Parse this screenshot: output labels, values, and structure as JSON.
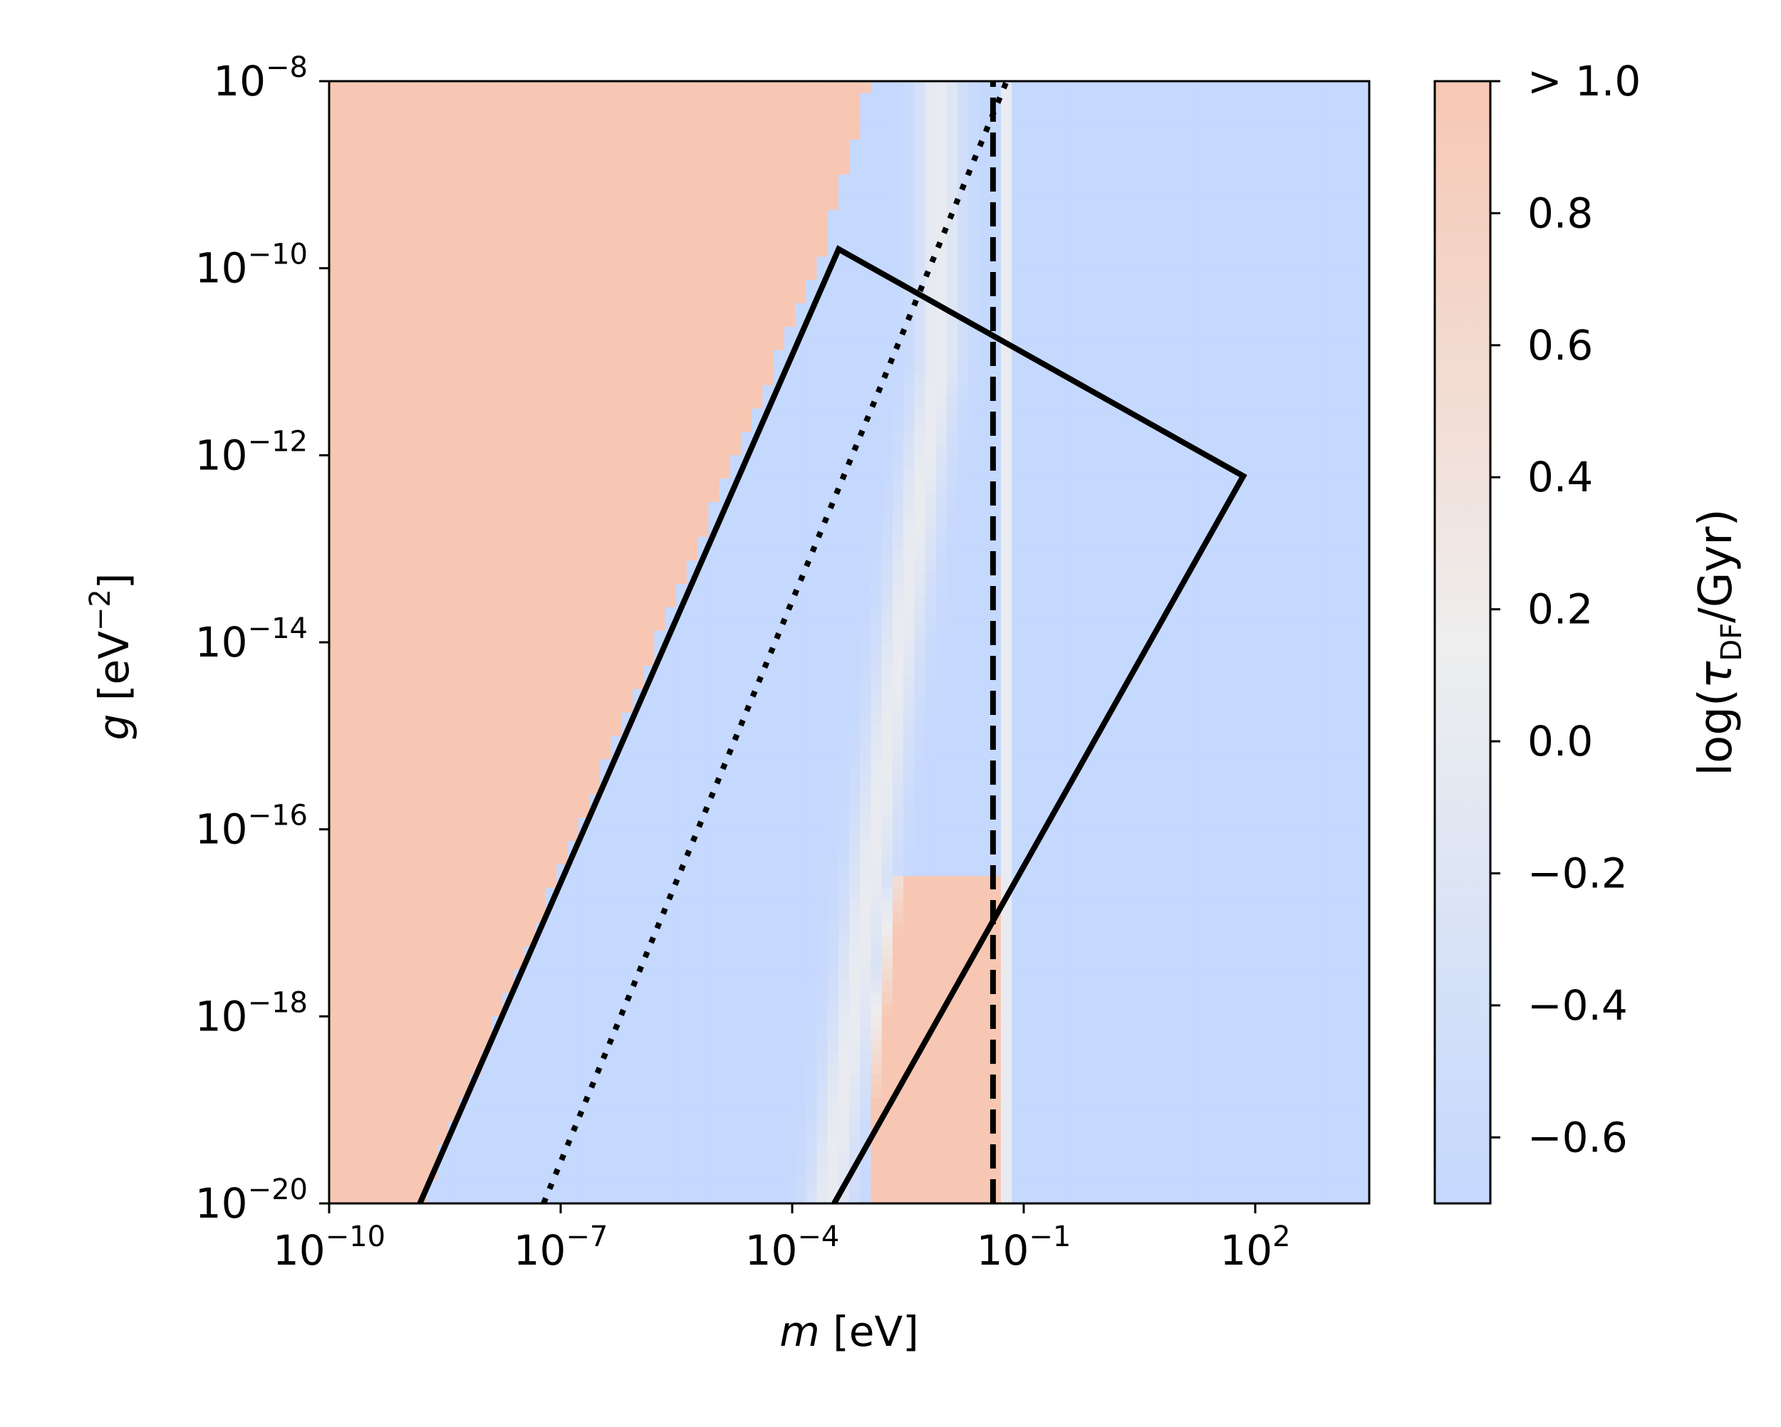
{
  "chart_data": {
    "type": "heatmap",
    "title": "",
    "xlabel": {
      "var": "m",
      "unit": " [eV]"
    },
    "ylabel": {
      "var": "g",
      "unit_pre": " [eV",
      "unit_sup": "−2",
      "unit_post": "]"
    },
    "x_scale": "log",
    "y_scale": "log",
    "xlim": [
      1e-10,
      3000
    ],
    "ylim": [
      1e-20,
      1e-08
    ],
    "x_ticks": [
      {
        "value": 1e-10,
        "base": "10",
        "exp": "−10"
      },
      {
        "value": 1e-07,
        "base": "10",
        "exp": "−7"
      },
      {
        "value": 0.0001,
        "base": "10",
        "exp": "−4"
      },
      {
        "value": 0.1,
        "base": "10",
        "exp": "−1"
      },
      {
        "value": 100,
        "base": "10",
        "exp": "2"
      }
    ],
    "y_ticks": [
      {
        "value": 1e-08,
        "base": "10",
        "exp": "−8"
      },
      {
        "value": 1e-10,
        "base": "10",
        "exp": "−10"
      },
      {
        "value": 1e-12,
        "base": "10",
        "exp": "−12"
      },
      {
        "value": 1e-14,
        "base": "10",
        "exp": "−14"
      },
      {
        "value": 1e-16,
        "base": "10",
        "exp": "−16"
      },
      {
        "value": 1e-18,
        "base": "10",
        "exp": "−18"
      },
      {
        "value": 1e-20,
        "base": "10",
        "exp": "−20"
      }
    ],
    "colormap": "coolwarm",
    "colors": {
      "low": "#c5d8fe",
      "mid": "#eeeeee",
      "high": "#f7c7b3",
      "lines": "#000000"
    },
    "colorbar": {
      "range": [
        -0.7,
        1.0
      ],
      "label": {
        "pre": "log(",
        "sym": "τ",
        "sub": "DF",
        "post": "/Gyr)"
      },
      "ticks": [
        {
          "value": 1.0,
          "label": "> 1.0"
        },
        {
          "value": 0.8,
          "label": "0.8"
        },
        {
          "value": 0.6,
          "label": "0.6"
        },
        {
          "value": 0.4,
          "label": "0.4"
        },
        {
          "value": 0.2,
          "label": "0.2"
        },
        {
          "value": 0.0,
          "label": "0.0"
        },
        {
          "value": -0.2,
          "label": "−0.2"
        },
        {
          "value": -0.4,
          "label": "−0.4"
        },
        {
          "value": -0.6,
          "label": "−0.6"
        }
      ]
    },
    "heatmap_regions": {
      "high_boundary_left": [
        [
          1.5e-09,
          1e-20
        ],
        [
          0.00025,
          1.6e-10
        ],
        [
          0.001,
          1e-08
        ]
      ],
      "white_band_center": [
        [
          0.0003,
          1e-20
        ],
        [
          0.0025,
          1e-14
        ],
        [
          0.008,
          1e-11
        ]
      ],
      "high_right_strip": {
        "x": [
          0.001,
          0.045
        ],
        "y": [
          1e-20,
          3e-17
        ]
      },
      "white_stripe_x": 0.06
    },
    "series": [
      {
        "style": "solid",
        "points": [
          [
            1.5e-09,
            1e-20
          ],
          [
            0.0004,
            1.6e-10
          ],
          [
            70,
            6e-13
          ],
          [
            0.00035,
            1e-20
          ]
        ]
      },
      {
        "style": "dotted",
        "points": [
          [
            6e-08,
            1e-20
          ],
          [
            0.06,
            1e-08
          ]
        ]
      },
      {
        "style": "dashed",
        "points": [
          [
            0.04,
            1e-20
          ],
          [
            0.04,
            1e-08
          ]
        ]
      }
    ]
  }
}
